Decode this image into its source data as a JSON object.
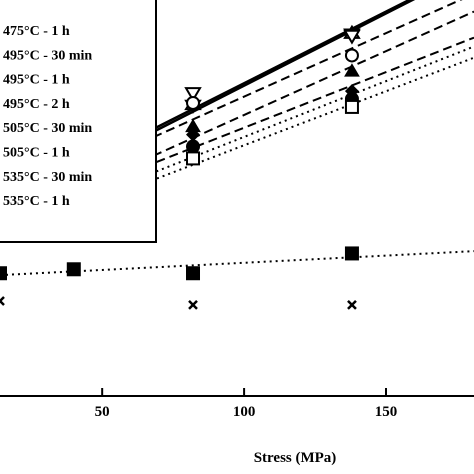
{
  "chart_data": {
    "type": "line",
    "xlabel": "Stress (MPa)",
    "xticks": [
      50,
      100,
      150
    ],
    "xlim": [
      14,
      181
    ],
    "ylim": [
      0,
      1
    ],
    "grid": false,
    "legend_position": "top-left",
    "series": [
      {
        "name": "475°C - 1 h",
        "line": "solid",
        "marker": "star",
        "x": [
          40,
          82,
          138
        ],
        "y": [
          0.555,
          0.735,
          0.915
        ]
      },
      {
        "name": "495°C - 30 min",
        "line": "solid",
        "marker": "triangle-down",
        "x": [
          40,
          82,
          138
        ],
        "y": [
          0.55,
          0.765,
          0.91
        ]
      },
      {
        "name": "495°C - 1 h",
        "line": "dashed",
        "marker": "circle-open",
        "x": [
          40,
          82,
          138
        ],
        "y": [
          0.54,
          0.74,
          0.86
        ]
      },
      {
        "name": "495°C - 2 h",
        "line": "dashed",
        "marker": "triangle-up",
        "x": [
          40,
          82,
          138
        ],
        "y": [
          0.5,
          0.68,
          0.82
        ]
      },
      {
        "name": "505°C - 30 min",
        "line": "dashed",
        "marker": "diamond",
        "x": [
          40,
          82,
          138
        ],
        "y": [
          0.49,
          0.66,
          0.77
        ]
      },
      {
        "name": "505°C - 1 h",
        "line": "dotted",
        "marker": "circle-filled",
        "x": [
          40,
          82,
          138
        ],
        "y": [
          0.47,
          0.63,
          0.75
        ]
      },
      {
        "name": "535°C - 30 min",
        "line": "dotted",
        "marker": "square-open",
        "x": [
          40,
          82,
          138
        ],
        "y": [
          0.46,
          0.6,
          0.73
        ]
      },
      {
        "name": "535°C - 1 h",
        "line": "dotted",
        "marker": "square-filled",
        "x": [
          14,
          40,
          82,
          138
        ],
        "y": [
          0.31,
          0.32,
          0.31,
          0.36
        ]
      },
      {
        "name": "",
        "line": "none",
        "marker": "x",
        "x": [
          14,
          82,
          138
        ],
        "y": [
          0.24,
          0.23,
          0.23
        ]
      }
    ]
  }
}
